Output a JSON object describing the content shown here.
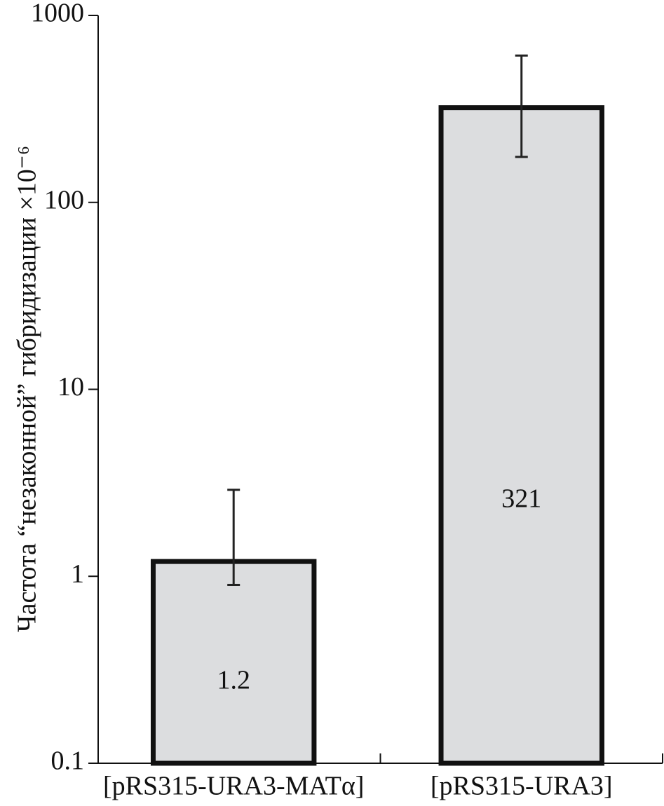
{
  "chart_data": {
    "type": "bar",
    "y_label": "Частота “незаконной” гибридизации ×10⁻⁶",
    "categories": [
      "[pRS315-URA3-MATα]",
      "[pRS315-URA3]"
    ],
    "values": [
      1.2,
      321
    ],
    "err_low": [
      0.9,
      175
    ],
    "err_high": [
      2.9,
      610
    ],
    "color": "#dcdddf",
    "ylim": [
      0.1,
      1000
    ],
    "yticks": [
      0.1,
      1,
      10,
      100,
      1000
    ],
    "log_y": true
  }
}
